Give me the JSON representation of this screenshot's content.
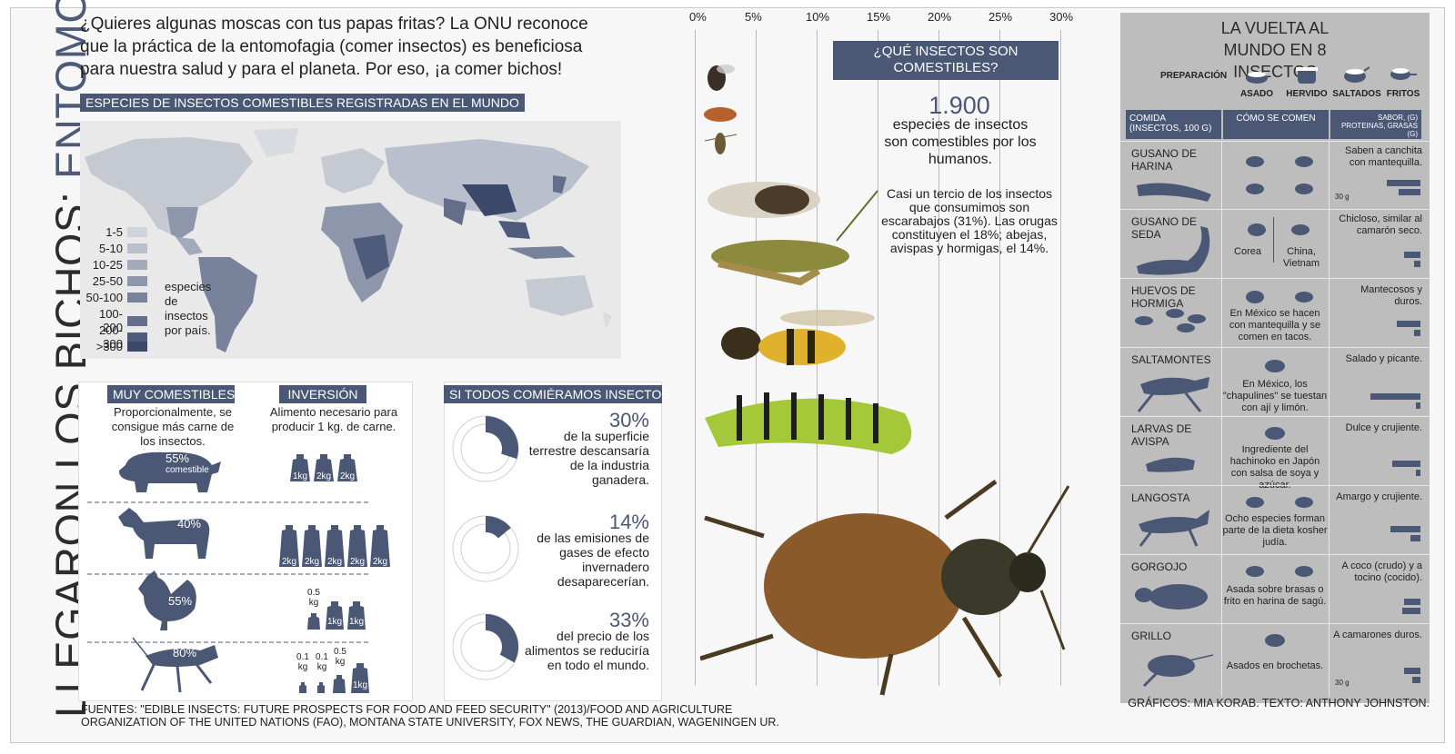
{
  "title": {
    "main": "LLEGARON LOS BICHOS:",
    "accent": "ENTOMOFAGIA"
  },
  "intro": "¿Quieres algunas moscas con tus papas fritas? La ONU reconoce que la práctica de la entomofagia (comer insectos) es beneficiosa para nuestra salud y para el planeta. Por eso, ¡a comer bichos!",
  "map_section": {
    "header": "ESPECIES DE INSECTOS COMESTIBLES REGISTRADAS EN EL MUNDO",
    "legend": [
      {
        "label": "1-5",
        "color": "#cfd3dc"
      },
      {
        "label": "5-10",
        "color": "#b9bfcc"
      },
      {
        "label": "10-25",
        "color": "#a3aabb"
      },
      {
        "label": "25-50",
        "color": "#8e96ab"
      },
      {
        "label": "50-100",
        "color": "#78829b"
      },
      {
        "label": "100-200",
        "color": "#636e8a"
      },
      {
        "label": "200-300",
        "color": "#4f5b7a"
      },
      {
        "label": ">300",
        "color": "#3c486a"
      }
    ],
    "legend_note": "especies de insectos por país."
  },
  "muy": {
    "header": "MUY COMESTIBLES...",
    "text": "Proporcionalmente, se consigue más carne de los insectos.",
    "animals": [
      {
        "pct": "55%",
        "sub": "comestible"
      },
      {
        "pct": "40%"
      },
      {
        "pct": "55%"
      },
      {
        "pct": "80%"
      }
    ]
  },
  "inversion": {
    "header": "INVERSIÓN",
    "text": "Alimento necesario para producir 1 kg. de carne.",
    "rows": [
      [
        "1kg",
        "2kg",
        "2kg"
      ],
      [
        "2kg",
        "2kg",
        "2kg",
        "2kg",
        "2kg"
      ],
      [
        "0.5 kg",
        "1kg",
        "1kg"
      ],
      [
        "0.1 kg",
        "0.1 kg",
        "0.5 kg",
        "1kg"
      ]
    ]
  },
  "si_todos": {
    "header": "SI TODOS COMIÉRAMOS INSECTOS...",
    "items": [
      {
        "pct": "30%",
        "text": "de la superficie terrestre descansaría de la industria ganadera.",
        "value": 0.3
      },
      {
        "pct": "14%",
        "text": "de las emisiones de gases de efecto invernadero desaparecerían.",
        "value": 0.14
      },
      {
        "pct": "33%",
        "text": "del precio de los alimentos se reduciría en todo el mundo.",
        "value": 0.33
      }
    ]
  },
  "axis": {
    "ticks": [
      "0%",
      "5%",
      "10%",
      "15%",
      "20%",
      "25%",
      "30%"
    ]
  },
  "que_insectos": {
    "header": "¿QUÉ INSECTOS SON COMESTIBLES?",
    "number": "1.900",
    "number_text": "especies de insectos son comestibles por los humanos.",
    "detail": "Casi un tercio de los insectos que consumimos son escarabajos (31%). Las orugas constituyen el 18%; abejas, avispas y hormigas, el 14%."
  },
  "vuelta": {
    "title": "LA VUELTA AL MUNDO EN 8 INSECTOS",
    "prep_label": "PREPARACIÓN",
    "methods": [
      "ASADO",
      "HERVIDO",
      "SALTADOS",
      "FRITOS"
    ],
    "col_comida": "COMIDA (INSECTOS, 100 G)",
    "col_como": "CÓMO SE COMEN",
    "col_sabor": "SABOR, (G) PROTEINAS, GRASAS (G)",
    "scale_label": "30 g",
    "rows": [
      {
        "name": "GUSANO DE HARINA",
        "how": "",
        "taste": "Saben a canchita con mantequilla.",
        "protein": 20,
        "fat": 13
      },
      {
        "name": "GUSANO DE SEDA",
        "how_left": "Corea",
        "how_right": "China, Vietnam",
        "taste": "Chicloso, similar al camarón seco.",
        "protein": 10,
        "fat": 4
      },
      {
        "name": "HUEVOS DE HORMIGA",
        "how": "En México se hacen con mantequilla y se comen en tacos.",
        "taste": "Mantecosos y duros.",
        "protein": 14,
        "fat": 4
      },
      {
        "name": "SALTAMONTES",
        "how": "En México, los \"chapulines\" se tuestan con ají y limón.",
        "taste": "Salado y picante.",
        "protein": 30,
        "fat": 3
      },
      {
        "name": "LARVAS DE AVISPA",
        "how": "Ingrediente del hachinoko en Japón con salsa de soya y azúcar.",
        "taste": "Dulce y crujiente.",
        "protein": 17,
        "fat": 3
      },
      {
        "name": "LANGOSTA",
        "how": "Ocho especies forman parte de la dieta kosher judía.",
        "taste": "Amargo y crujiente.",
        "protein": 18,
        "fat": 6
      },
      {
        "name": "GORGOJO",
        "how": "Asada sobre brasas o frito en harina de sagú.",
        "taste": "A coco (crudo) y a tocino (cocido).",
        "protein": 10,
        "fat": 11
      },
      {
        "name": "GRILLO",
        "how": "Asados en brochetas.",
        "taste": "A camarones duros.",
        "protein": 10,
        "fat": 5
      }
    ]
  },
  "footer": "FUENTES: \"EDIBLE INSECTS: FUTURE PROSPECTS FOR FOOD AND FEED SECURITY\" (2013)/FOOD AND AGRICULTURE ORGANIZATION OF THE UNITED NATIONS (FAO), MONTANA STATE UNIVERSITY, FOX NEWS, THE GUARDIAN, WAGENINGEN UR.",
  "credit": "GRÁFICOS: MIA KORAB. TEXTO: ANTHONY JOHNSTON."
}
